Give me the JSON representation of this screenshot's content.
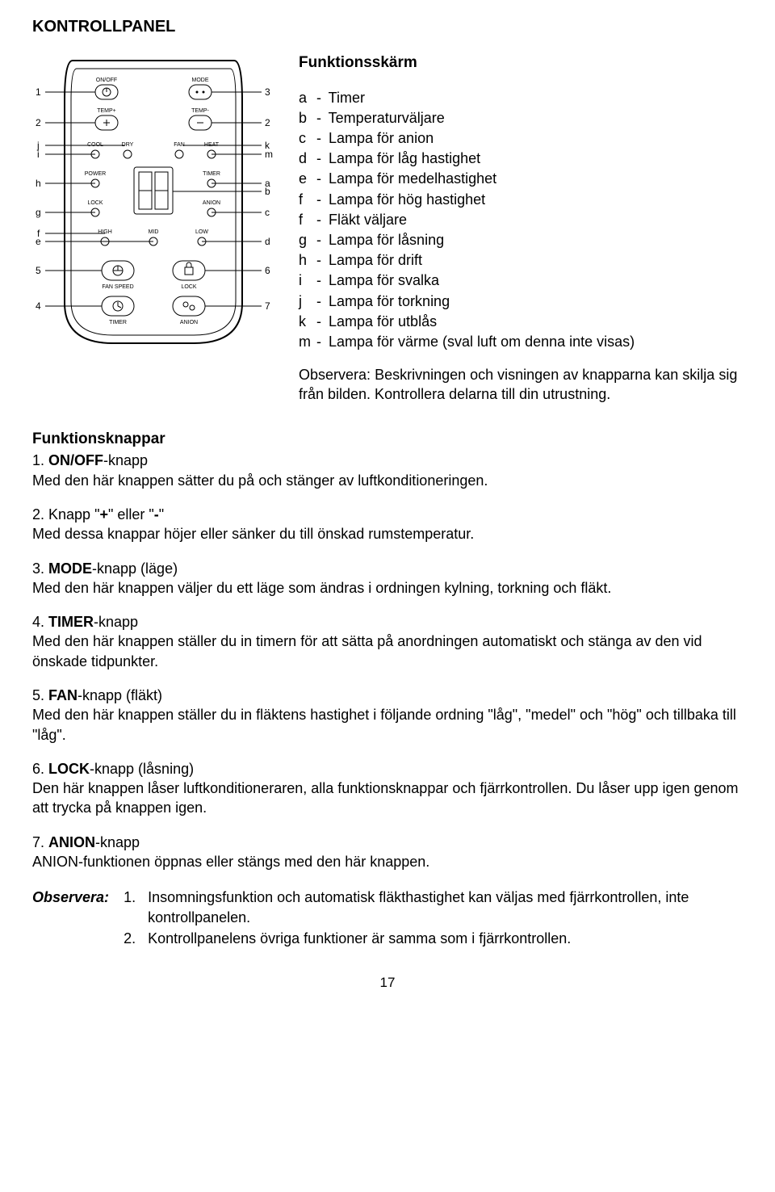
{
  "page": {
    "title": "KONTROLLPANEL",
    "page_number": "17"
  },
  "diagram": {
    "left_labels": [
      "1",
      "2",
      "j",
      "i",
      "h",
      "g",
      "f",
      "e",
      "5",
      "4"
    ],
    "right_labels": [
      "3",
      "2",
      "k",
      "m",
      "a",
      "b",
      "c",
      "d",
      "6",
      "7"
    ],
    "panel_labels": {
      "on_off": "ON/OFF",
      "mode": "MODE",
      "temp_plus": "TEMP+",
      "temp_minus": "TEMP-",
      "cool": "COOL",
      "dry": "DRY",
      "fan_l": "FAN",
      "heat": "HEAT",
      "power": "POWER",
      "timer_l": "TIMER",
      "lock_l": "LOCK",
      "anion_l": "ANION",
      "high": "HIGH",
      "mid": "MID",
      "low": "LOW",
      "fan_speed": "FAN SPEED",
      "lock_btn": "LOCK",
      "timer_btn": "TIMER",
      "anion_btn": "ANION"
    }
  },
  "legend": {
    "heading": "Funktionsskärm",
    "items": [
      {
        "k": "a",
        "t": "Timer"
      },
      {
        "k": "b",
        "t": "Temperaturväljare"
      },
      {
        "k": "c",
        "t": "Lampa för anion"
      },
      {
        "k": "d",
        "t": "Lampa för låg hastighet"
      },
      {
        "k": "e",
        "t": "Lampa för medelhastighet"
      },
      {
        "k": "f",
        "t": "Lampa för hög hastighet"
      },
      {
        "k": "f",
        "t": "Fläkt väljare"
      },
      {
        "k": "g",
        "t": "Lampa för låsning"
      },
      {
        "k": "h",
        "t": "Lampa för drift"
      },
      {
        "k": "i",
        "t": "Lampa för svalka"
      },
      {
        "k": "j",
        "t": "Lampa för torkning"
      },
      {
        "k": "k",
        "t": "Lampa för utblås"
      },
      {
        "k": "m",
        "t": "Lampa för värme (sval luft om denna inte visas)"
      }
    ],
    "observe_label": "Observera:",
    "observe_text": "Beskrivningen och visningen av knapparna kan skilja sig från bilden. Kontrollera delarna till din utrustning."
  },
  "functions": {
    "heading": "Funktionsknappar",
    "items": [
      {
        "num": "1.",
        "bold": "ON/OFF",
        "rest": "-knapp",
        "desc": "Med den här knappen sätter du på och stänger av luftkonditioneringen."
      },
      {
        "num": "2.",
        "bold_pre": "Knapp \"",
        "bold": "+",
        "bold_mid": "\" eller \"",
        "bold2": "-",
        "bold_post": "\"",
        "desc": "Med dessa knappar höjer eller sänker du till önskad rumstemperatur."
      },
      {
        "num": "3.",
        "bold": "MODE",
        "rest": "-knapp (läge)",
        "desc": "Med den här knappen väljer du ett läge som ändras i ordningen kylning, torkning och fläkt."
      },
      {
        "num": "4.",
        "bold": "TIMER",
        "rest": "-knapp",
        "desc": "Med den här knappen ställer du in timern för att sätta på anordningen automatiskt och stänga av den vid önskade tidpunkter."
      },
      {
        "num": "5.",
        "bold": "FAN",
        "rest": "-knapp (fläkt)",
        "desc": "Med den här knappen ställer du in fläktens hastighet i följande ordning \"låg\", \"medel\" och \"hög\" och tillbaka till \"låg\"."
      },
      {
        "num": "6.",
        "bold": "LOCK",
        "rest": "-knapp (låsning)",
        "desc": "Den här knappen låser luftkonditioneraren, alla funktionsknappar och fjärrkontrollen. Du låser upp igen genom att trycka på knappen igen."
      },
      {
        "num": "7.",
        "bold": "ANION",
        "rest": "-knapp",
        "desc": "ANION-funktionen öppnas eller stängs med den här knappen."
      }
    ]
  },
  "bottom_observe": {
    "label": "Observera:",
    "notes": [
      {
        "n": "1.",
        "t": "Insomningsfunktion och automatisk fläkthastighet kan väljas med fjärrkontrollen, inte kontrollpanelen."
      },
      {
        "n": "2.",
        "t": "Kontrollpanelens övriga funktioner är samma som i fjärrkontrollen."
      }
    ]
  },
  "colors": {
    "text": "#000000",
    "bg": "#ffffff",
    "stroke": "#000000"
  }
}
